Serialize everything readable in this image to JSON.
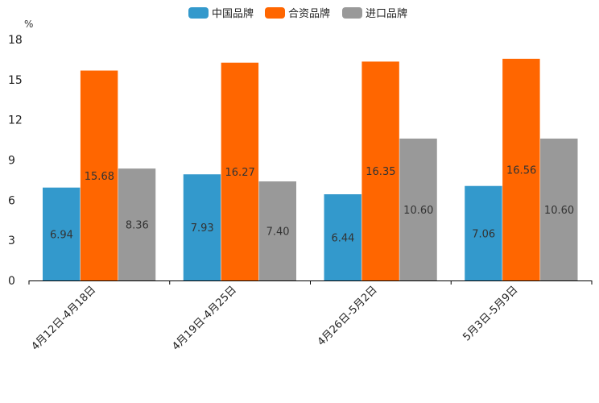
{
  "chart_data": {
    "type": "bar",
    "title": "",
    "ylabel": "%",
    "xlabel": "",
    "ylim": [
      0,
      18
    ],
    "yticks": [
      0,
      3,
      6,
      9,
      12,
      15,
      18
    ],
    "legend_position": "top-center",
    "grid": false,
    "categories": [
      "4月12日-4月18日",
      "4月19日-4月25日",
      "4月26日-5月2日",
      "5月3日-5月9日"
    ],
    "series": [
      {
        "name": "中国品牌",
        "color": "#3399cc",
        "values": [
          6.94,
          7.93,
          6.44,
          7.06
        ],
        "labels": [
          "6.94",
          "7.93",
          "6.44",
          "7.06"
        ]
      },
      {
        "name": "合资品牌",
        "color": "#ff6600",
        "values": [
          15.68,
          16.27,
          16.35,
          16.56
        ],
        "labels": [
          "15.68",
          "16.27",
          "16.35",
          "16.56"
        ]
      },
      {
        "name": "进口品牌",
        "color": "#999999",
        "values": [
          8.36,
          7.4,
          10.6,
          10.6
        ],
        "labels": [
          "8.36",
          "7.40",
          "10.60",
          "10.60"
        ]
      }
    ]
  }
}
